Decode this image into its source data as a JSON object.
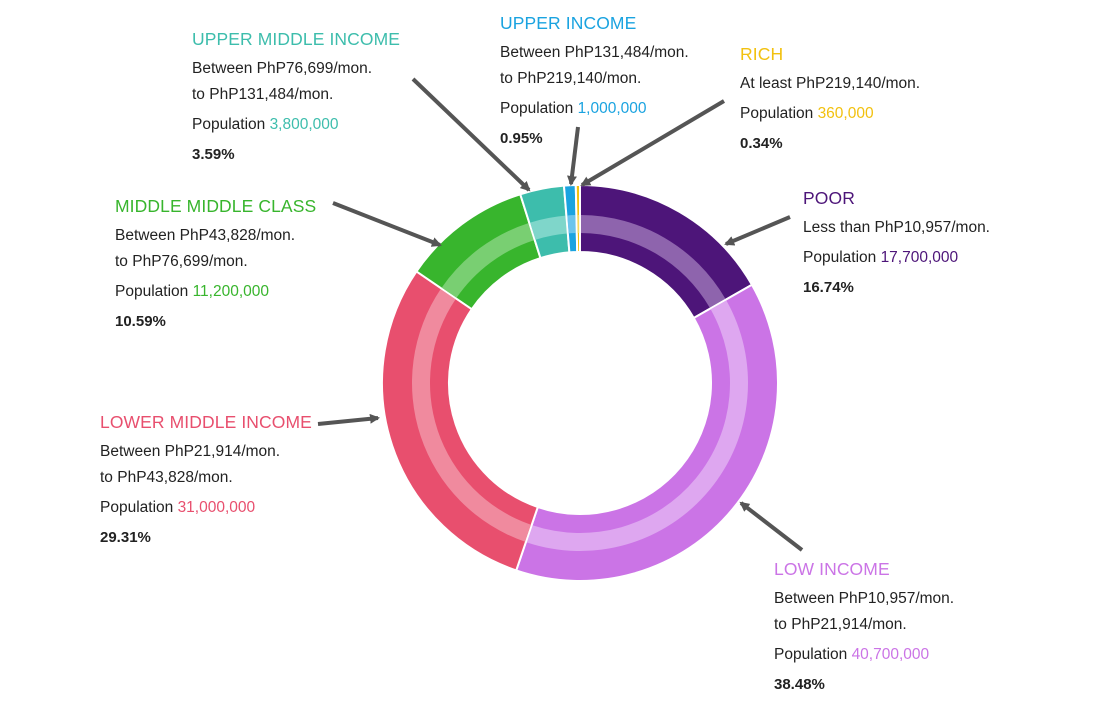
{
  "chart_data": {
    "type": "pie",
    "style": "donut",
    "segments": [
      {
        "key": "poor",
        "title": "POOR",
        "lines": [
          "Less than PhP10,957/mon."
        ],
        "population_label": "Population",
        "population": "17,700,000",
        "percent_label": "16.74%",
        "percent": 16.74,
        "color": "#4d1579",
        "inner_color": "#8e64ad"
      },
      {
        "key": "low",
        "title": "LOW INCOME",
        "lines": [
          "Between PhP10,957/mon.",
          "to PhP21,914/mon."
        ],
        "population_label": "Population",
        "population": "40,700,000",
        "percent_label": "38.48%",
        "percent": 38.48,
        "color": "#cb74e6",
        "inner_color": "#dea7f0"
      },
      {
        "key": "lower_middle",
        "title": "LOWER MIDDLE INCOME",
        "lines": [
          "Between PhP21,914/mon.",
          "to PhP43,828/mon."
        ],
        "population_label": "Population",
        "population": "31,000,000",
        "percent_label": "29.31%",
        "percent": 29.31,
        "color": "#e84f6e",
        "inner_color": "#f08a9e"
      },
      {
        "key": "middle_middle",
        "title": "MIDDLE MIDDLE CLASS",
        "lines": [
          "Between PhP43,828/mon.",
          "to PhP76,699/mon."
        ],
        "population_label": "Population",
        "population": "11,200,000",
        "percent_label": "10.59%",
        "percent": 10.59,
        "color": "#38b52d",
        "inner_color": "#79cf72"
      },
      {
        "key": "upper_middle",
        "title": "UPPER MIDDLE INCOME",
        "lines": [
          "Between PhP76,699/mon.",
          "to PhP131,484/mon."
        ],
        "population_label": "Population",
        "population": "3,800,000",
        "percent_label": "3.59%",
        "percent": 3.59,
        "color": "#3dbdac",
        "inner_color": "#7fd6ca"
      },
      {
        "key": "upper",
        "title": "UPPER INCOME",
        "lines": [
          "Between PhP131,484/mon.",
          "to PhP219,140/mon."
        ],
        "population_label": "Population",
        "population": "1,000,000",
        "percent_label": "0.95%",
        "percent": 0.95,
        "color": "#1aa3e0",
        "inner_color": "#6cc4ec"
      },
      {
        "key": "rich",
        "title": "RICH",
        "lines": [
          "At least PhP219,140/mon."
        ],
        "population_label": "Population",
        "population": "360,000",
        "percent_label": "0.34%",
        "percent": 0.34,
        "color": "#f2c10f",
        "inner_color": "#f7d85e"
      }
    ],
    "title": "",
    "legend": "none",
    "grid": false
  }
}
